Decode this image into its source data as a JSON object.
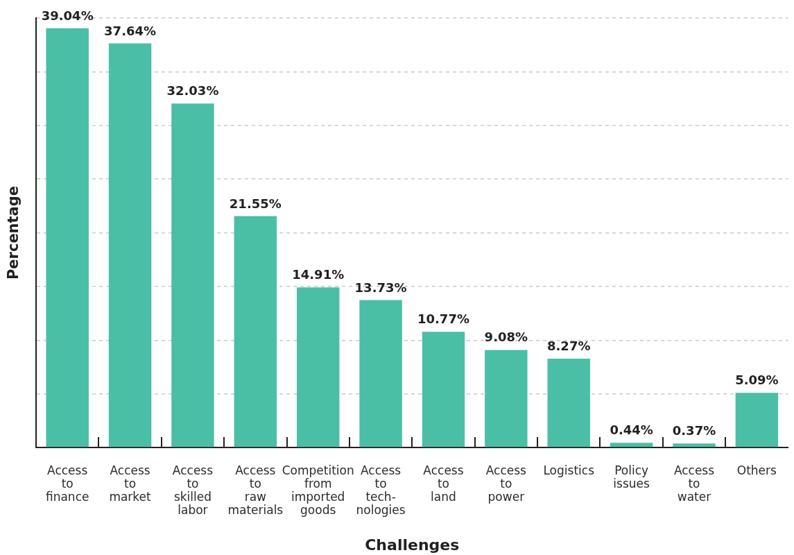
{
  "chart_data": {
    "type": "bar",
    "xlabel": "Challenges",
    "ylabel": "Percentage",
    "categories": [
      "Access to finance",
      "Access to market",
      "Access to skilled labor",
      "Access to raw materials",
      "Competition from imported goods",
      "Access to tech-nologies",
      "Access to land",
      "Access to power",
      "Logistics",
      "Policy issues",
      "Access to water",
      "Others"
    ],
    "values": [
      39.04,
      37.64,
      32.03,
      21.55,
      14.91,
      13.73,
      10.77,
      9.08,
      8.27,
      0.44,
      0.37,
      5.09
    ],
    "color": "#4abfa5",
    "value_labels": [
      "39.04%",
      "37.64%",
      "32.03%",
      "21.55%",
      "14.91%",
      "13.73%",
      "10.77%",
      "9.08%",
      "8.27%",
      "0.44%",
      "0.37%",
      "5.09%"
    ],
    "ylim": [
      0,
      40
    ],
    "yticks": [
      {
        "value": 0,
        "label": null
      },
      {
        "value": 5,
        "label": null
      },
      {
        "value": 10,
        "label": null
      },
      {
        "value": 15,
        "label": null
      },
      {
        "value": 20,
        "label": null
      },
      {
        "value": 25,
        "label": null
      },
      {
        "value": 30,
        "label": null
      },
      {
        "value": 35,
        "label": null
      },
      {
        "value": 40,
        "label": null
      }
    ],
    "grid": "y",
    "tick_labels": "x"
  }
}
